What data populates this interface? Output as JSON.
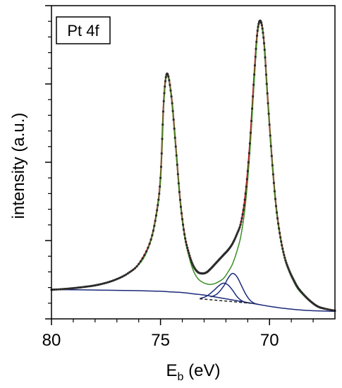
{
  "chart_data": {
    "type": "line",
    "annotation": "Pt 4f",
    "xlabel_main": "E",
    "xlabel_sub": "b",
    "xlabel_unit": " (eV)",
    "ylabel": "intensity (a.u.)",
    "x_reversed": true,
    "xlim": [
      80,
      67
    ],
    "ylim": [
      0,
      100
    ],
    "xticks": [
      80,
      75,
      70
    ],
    "xtick_labels": [
      "80",
      "75",
      "70"
    ],
    "yticks_major": [
      0,
      25,
      50,
      75,
      100
    ],
    "grid": false,
    "legend": "none",
    "series": [
      {
        "role": "measured",
        "color": "#2b2b2b",
        "marker": "dot",
        "x": [
          80,
          79.5,
          79,
          78.5,
          78,
          77.5,
          77,
          76.5,
          76,
          75.5,
          75.2,
          75,
          74.85,
          74.7,
          74.5,
          74.3,
          74.1,
          73.9,
          73.7,
          73.5,
          73.3,
          73.1,
          72.9,
          72.7,
          72.5,
          72.3,
          72.1,
          71.9,
          71.7,
          71.5,
          71.3,
          71.1,
          70.9,
          70.7,
          70.55,
          70.4,
          70.25,
          70.1,
          69.9,
          69.7,
          69.5,
          69.3,
          69.1,
          68.9,
          68.7,
          68.4,
          68.1,
          67.8,
          67.5,
          67
        ],
        "y": [
          9.3,
          9.5,
          9.8,
          10.2,
          10.7,
          11.5,
          12.7,
          14.5,
          17.5,
          24,
          33,
          45,
          69.5,
          78.3,
          71,
          55,
          38,
          27,
          21,
          17,
          15,
          14.5,
          14.8,
          16,
          17.5,
          19,
          20.5,
          22,
          24,
          27,
          31,
          40,
          56,
          78,
          92,
          95,
          88,
          72,
          52,
          36,
          26,
          19.5,
          15.5,
          12.5,
          10,
          7.5,
          5.5,
          4,
          3.3,
          2.6
        ]
      },
      {
        "role": "envelope",
        "color": "#b5121b",
        "x": [
          80,
          79.5,
          79,
          78.5,
          78,
          77.5,
          77,
          76.5,
          76,
          75.5,
          75.2,
          75,
          74.85,
          74.7,
          74.5,
          74.3,
          74.1,
          73.9,
          73.7,
          73.5,
          73.3,
          73.1,
          72.9,
          72.7,
          72.5,
          72.3,
          72.1,
          71.9,
          71.7,
          71.5,
          71.3,
          71.1,
          70.9,
          70.7,
          70.55,
          70.4,
          70.25,
          70.1,
          69.9,
          69.7,
          69.5,
          69.3,
          69.1,
          68.9,
          68.7,
          68.4,
          68.1,
          67.8,
          67.5,
          67
        ],
        "y": [
          9.3,
          9.5,
          9.8,
          10.2,
          10.7,
          11.5,
          12.7,
          14.5,
          17.5,
          24,
          33,
          45,
          69.5,
          78.3,
          71,
          55,
          38,
          27,
          21,
          17,
          15,
          14.5,
          14.8,
          16,
          17.5,
          19,
          20.5,
          22,
          24,
          27,
          31,
          40,
          56,
          78,
          92,
          95,
          88,
          72,
          52,
          36,
          26,
          19.5,
          15.5,
          12.5,
          10,
          7.5,
          5.5,
          4,
          3.3,
          2.6
        ]
      },
      {
        "role": "metallic-component",
        "color": "#3a8f24",
        "x": [
          80,
          79,
          78,
          77,
          76,
          75.5,
          75.2,
          75,
          74.85,
          74.7,
          74.5,
          74.3,
          74.1,
          73.9,
          73.7,
          73.5,
          73.3,
          73.1,
          72.9,
          72.7,
          72.5,
          72.3,
          72.1,
          71.9,
          71.7,
          71.5,
          71.3,
          71.1,
          70.9,
          70.7,
          70.55,
          70.4,
          70.25,
          70.1,
          69.9,
          69.7,
          69.5,
          69.3,
          69.1,
          68.9,
          68.7,
          68.4,
          68.1,
          67.8,
          67.5,
          67
        ],
        "y": [
          9.3,
          9.8,
          10.7,
          12.6,
          17.3,
          23.7,
          32.6,
          44.5,
          69,
          77.8,
          70.5,
          54.5,
          37.5,
          26.3,
          20,
          15.5,
          13,
          11.8,
          11.2,
          11,
          11.3,
          12,
          13,
          15,
          17.5,
          21.5,
          27,
          37,
          53.5,
          76,
          91,
          94.5,
          87.5,
          71.5,
          51.5,
          35.5,
          25.5,
          19,
          15,
          12,
          9.5,
          7.2,
          5.3,
          3.9,
          3.2,
          2.6
        ]
      },
      {
        "role": "background",
        "color": "#1c2a7a",
        "x": [
          80,
          79,
          78,
          77,
          76,
          75,
          74.5,
          74,
          73.5,
          73,
          72.5,
          72,
          71.5,
          71,
          70.5,
          70,
          69.5,
          69,
          68.5,
          68,
          67.5,
          67
        ],
        "y": [
          9.3,
          9.3,
          9.2,
          9.1,
          9.0,
          8.8,
          8.6,
          8.4,
          8.0,
          7.6,
          7.0,
          6.4,
          5.8,
          5.2,
          4.6,
          4.0,
          3.5,
          3.1,
          2.8,
          2.6,
          2.5,
          2.4
        ]
      },
      {
        "role": "oxide-component-1",
        "color": "#1c2a7a",
        "x": [
          73.2,
          72.9,
          72.6,
          72.3,
          72.1,
          71.9,
          71.7,
          71.5,
          71.3,
          71.1,
          70.9
        ],
        "y": [
          6.5,
          7.2,
          8.8,
          10.7,
          11.4,
          10.8,
          9.2,
          7.2,
          5.9,
          5.3,
          5.0
        ]
      },
      {
        "role": "oxide-component-2",
        "color": "#1c2a7a",
        "x": [
          72.7,
          72.4,
          72.1,
          71.9,
          71.7,
          71.5,
          71.3,
          71.1,
          70.9,
          70.7,
          70.5
        ],
        "y": [
          7.0,
          8.0,
          10.5,
          13.0,
          14.5,
          13.5,
          10.8,
          8.0,
          6.0,
          5.0,
          4.6
        ]
      },
      {
        "role": "linear-baseline",
        "color": "#222222",
        "dashed": true,
        "x": [
          73.2,
          70.7
        ],
        "y": [
          6.4,
          4.9
        ]
      }
    ]
  }
}
